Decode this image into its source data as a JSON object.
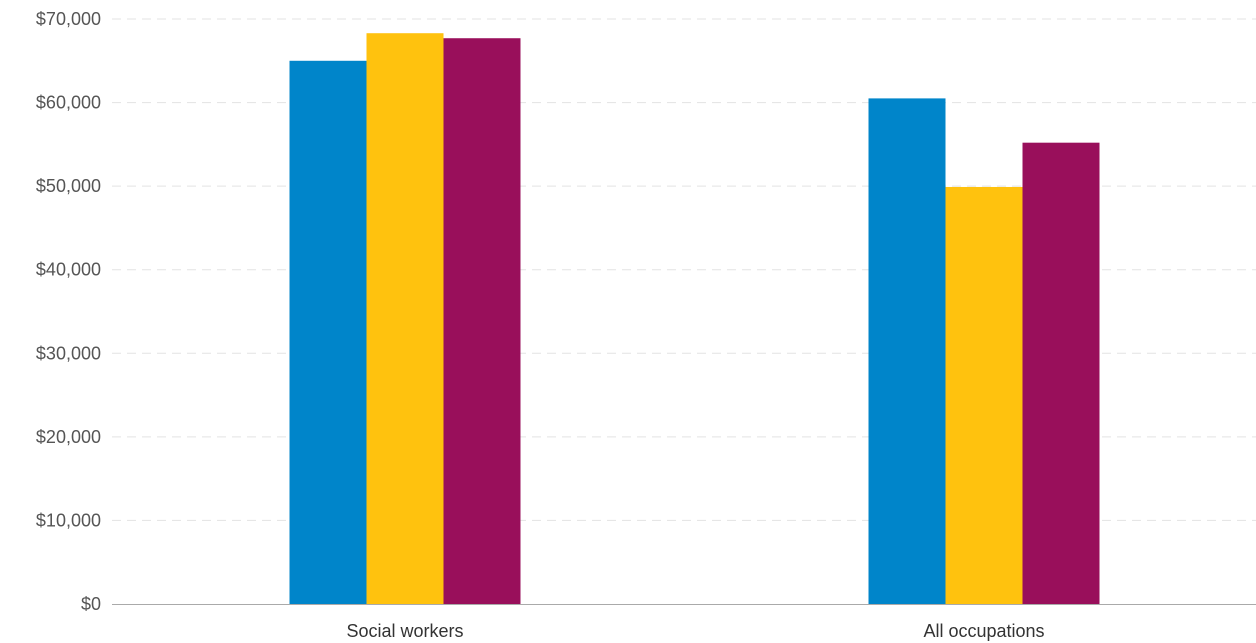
{
  "chart_data": {
    "type": "bar",
    "categories": [
      "Social workers",
      "All occupations"
    ],
    "series": [
      {
        "color": "#0085CA",
        "values": [
          65000,
          60500
        ]
      },
      {
        "color": "#FFC20E",
        "values": [
          68300,
          49900
        ]
      },
      {
        "color": "#990F5B",
        "values": [
          67700,
          55200
        ]
      }
    ],
    "ylim": [
      0,
      70000
    ],
    "y_ticks": [
      0,
      10000,
      20000,
      30000,
      40000,
      50000,
      60000,
      70000
    ],
    "y_tick_labels": [
      "$0",
      "$10,000",
      "$20,000",
      "$30,000",
      "$40,000",
      "$50,000",
      "$60,000",
      "$70,000"
    ],
    "title": "",
    "xlabel": "",
    "ylabel": "",
    "grid": true,
    "gridline_color": "#e3e3e3",
    "axis_color": "#aaaaaa"
  }
}
